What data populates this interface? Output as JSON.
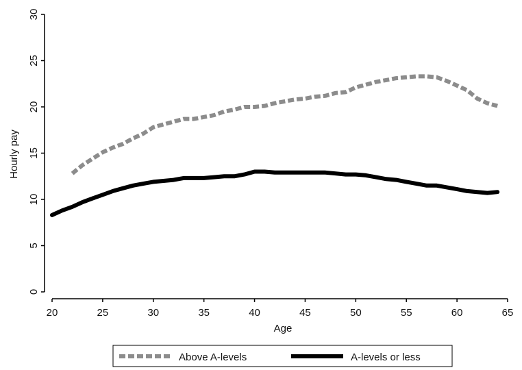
{
  "chart_data": {
    "type": "line",
    "title": "",
    "xlabel": "Age",
    "ylabel": "Hourly pay",
    "xlim": [
      20,
      65
    ],
    "ylim": [
      0,
      30
    ],
    "x_ticks": [
      "20",
      "25",
      "30",
      "35",
      "40",
      "45",
      "50",
      "55",
      "60",
      "65"
    ],
    "y_ticks": [
      "0",
      "5",
      "10",
      "15",
      "20",
      "25",
      "30"
    ],
    "grid": false,
    "legend_position": "bottom",
    "series": [
      {
        "name": "Above A-levels",
        "color": "#8c8c8c",
        "style": "dashed",
        "x": [
          22,
          23,
          24,
          25,
          26,
          27,
          28,
          29,
          30,
          31,
          32,
          33,
          34,
          35,
          36,
          37,
          38,
          39,
          40,
          41,
          42,
          43,
          44,
          45,
          46,
          47,
          48,
          49,
          50,
          51,
          52,
          53,
          54,
          55,
          56,
          57,
          58,
          59,
          60,
          61,
          62,
          63,
          64
        ],
        "y": [
          12.8,
          13.7,
          14.4,
          15.1,
          15.6,
          16.0,
          16.6,
          17.1,
          17.8,
          18.1,
          18.4,
          18.7,
          18.7,
          18.9,
          19.1,
          19.5,
          19.7,
          20.0,
          20.0,
          20.1,
          20.4,
          20.6,
          20.8,
          20.9,
          21.1,
          21.2,
          21.5,
          21.6,
          22.1,
          22.4,
          22.7,
          22.9,
          23.1,
          23.2,
          23.3,
          23.3,
          23.2,
          22.8,
          22.3,
          21.8,
          20.9,
          20.4,
          20.1
        ]
      },
      {
        "name": "A-levels or less",
        "color": "#000000",
        "style": "solid",
        "x": [
          20,
          21,
          22,
          23,
          24,
          25,
          26,
          27,
          28,
          29,
          30,
          31,
          32,
          33,
          34,
          35,
          36,
          37,
          38,
          39,
          40,
          41,
          42,
          43,
          44,
          45,
          46,
          47,
          48,
          49,
          50,
          51,
          52,
          53,
          54,
          55,
          56,
          57,
          58,
          59,
          60,
          61,
          62,
          63,
          64
        ],
        "y": [
          8.3,
          8.8,
          9.2,
          9.7,
          10.1,
          10.5,
          10.9,
          11.2,
          11.5,
          11.7,
          11.9,
          12.0,
          12.1,
          12.3,
          12.3,
          12.3,
          12.4,
          12.5,
          12.5,
          12.7,
          13.0,
          13.0,
          12.9,
          12.9,
          12.9,
          12.9,
          12.9,
          12.9,
          12.8,
          12.7,
          12.7,
          12.6,
          12.4,
          12.2,
          12.1,
          11.9,
          11.7,
          11.5,
          11.5,
          11.3,
          11.1,
          10.9,
          10.8,
          10.7,
          10.8
        ]
      }
    ]
  }
}
